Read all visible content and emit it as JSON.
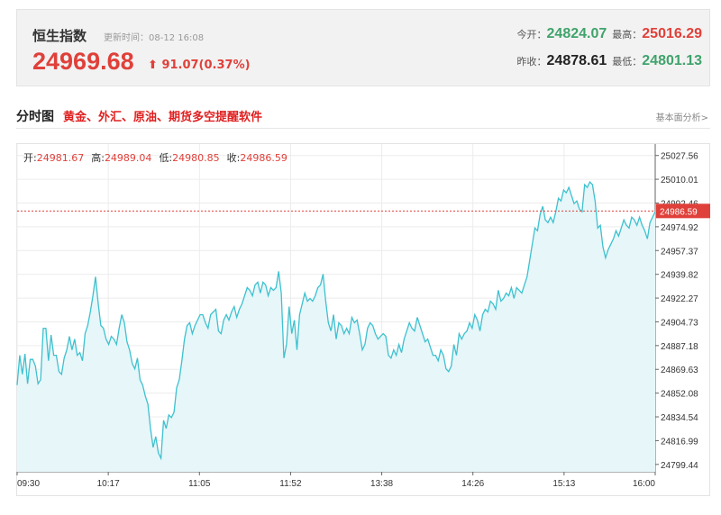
{
  "header": {
    "title": "恒生指数",
    "update_time": "更新时间：08-12 16:08",
    "price": "24969.68",
    "change": "91.07(0.37%)",
    "open_label": "今开：",
    "open": "24824.07",
    "high_label": "最高：",
    "high": "25016.29",
    "prev_close_label": "昨收：",
    "prev_close": "24878.61",
    "low_label": "最低：",
    "low": "24801.13"
  },
  "section": {
    "title": "分时图",
    "promo": "黄金、外汇、原油、期货多空提醒软件",
    "analysis_link": "基本面分析>"
  },
  "ohlc": {
    "open_label": "开:",
    "open": "24981.67",
    "high_label": "高:",
    "high": "24989.04",
    "low_label": "低:",
    "low": "24980.85",
    "close_label": "收:",
    "close": "24986.59"
  },
  "colors": {
    "line": "#3ec1cf",
    "fill": "#e6f6f9",
    "up": "#e0403a",
    "down": "#3fa36b",
    "ref": "#e0403a"
  },
  "chart_data": {
    "type": "area",
    "x_ticks": [
      "09:30",
      "10:17",
      "11:05",
      "11:52",
      "13:38",
      "14:26",
      "15:13",
      "16:00"
    ],
    "y_ticks": [
      "25027.56",
      "25010.01",
      "24992.46",
      "24974.92",
      "24957.37",
      "24939.82",
      "24922.27",
      "24904.73",
      "24887.18",
      "24869.63",
      "24852.08",
      "24834.54",
      "24816.99",
      "24799.44"
    ],
    "ylim": [
      24794,
      25036
    ],
    "current_value": 24986.59,
    "current_label": "24986.59",
    "values": [
      24858,
      24880,
      24866,
      24881,
      24859,
      24877,
      24877,
      24872,
      24859,
      24862,
      24900,
      24900,
      24876,
      24895,
      24880,
      24880,
      24868,
      24866,
      24878,
      24884,
      24894,
      24884,
      24892,
      24880,
      24882,
      24876,
      24896,
      24902,
      24912,
      24924,
      24938,
      24918,
      24902,
      24900,
      24892,
      24888,
      24894,
      24892,
      24888,
      24900,
      24910,
      24904,
      24890,
      24884,
      24874,
      24870,
      24878,
      24862,
      24858,
      24850,
      24844,
      24826,
      24812,
      24820,
      24808,
      24804,
      24832,
      24826,
      24836,
      24834,
      24838,
      24856,
      24862,
      24876,
      24892,
      24902,
      24904,
      24896,
      24902,
      24906,
      24910,
      24910,
      24904,
      24900,
      24910,
      24912,
      24914,
      24898,
      24896,
      24906,
      24910,
      24906,
      24912,
      24916,
      24908,
      24914,
      24918,
      24924,
      24930,
      24928,
      24924,
      24932,
      24934,
      24926,
      24934,
      24932,
      24924,
      24930,
      24928,
      24930,
      24942,
      24926,
      24878,
      24888,
      24916,
      24896,
      24906,
      24884,
      24910,
      24918,
      24926,
      24920,
      24922,
      24920,
      24924,
      24930,
      24932,
      24940,
      24920,
      24904,
      24898,
      24910,
      24892,
      24904,
      24902,
      24896,
      24900,
      24896,
      24908,
      24904,
      24906,
      24896,
      24884,
      24888,
      24900,
      24904,
      24902,
      24896,
      24892,
      24894,
      24896,
      24894,
      24880,
      24878,
      24884,
      24880,
      24888,
      24882,
      24892,
      24898,
      24904,
      24900,
      24898,
      24908,
      24902,
      24896,
      24890,
      24892,
      24886,
      24880,
      24880,
      24876,
      24884,
      24880,
      24870,
      24868,
      24872,
      24888,
      24880,
      24896,
      24892,
      24896,
      24898,
      24904,
      24900,
      24910,
      24906,
      24898,
      24910,
      24914,
      24912,
      24920,
      24918,
      24914,
      24928,
      24920,
      24922,
      24926,
      24924,
      24930,
      24922,
      24930,
      24928,
      24926,
      24932,
      24938,
      24950,
      24962,
      24974,
      24972,
      24984,
      24990,
      24980,
      24978,
      24982,
      24978,
      24986,
      24996,
      24994,
      25002,
      25000,
      25004,
      24998,
      24992,
      24994,
      24988,
      24986,
      25006,
      25004,
      25008,
      25006,
      24994,
      24974,
      24976,
      24960,
      24952,
      24958,
      24962,
      24966,
      24972,
      24968,
      24974,
      24980,
      24976,
      24974,
      24982,
      24980,
      24976,
      24982,
      24976,
      24972,
      24966,
      24978,
      24982,
      24986
    ]
  }
}
